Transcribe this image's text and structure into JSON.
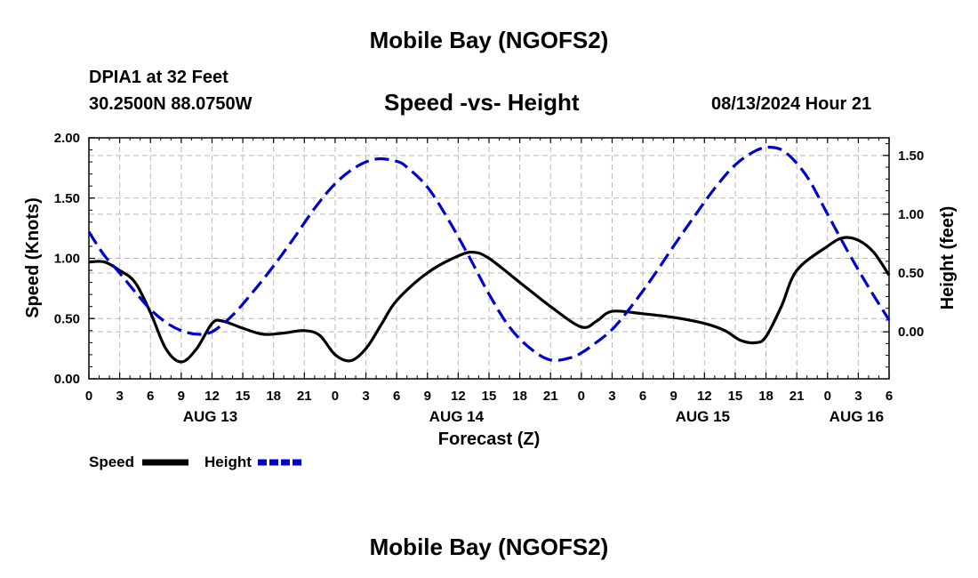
{
  "header": {
    "title": "Mobile Bay (NGOFS2)",
    "station": "DPIA1 at 32 Feet",
    "coords": "30.2500N  88.0750W",
    "subtitle": "Speed -vs- Height",
    "datetime": "08/13/2024 Hour 21"
  },
  "footer": {
    "title": "Mobile Bay (NGOFS2)"
  },
  "chart_data": {
    "type": "line",
    "xlabel": "Forecast (Z)",
    "ylabel_left": "Speed (Knots)",
    "ylabel_right": "Height (feet)",
    "x_range_hours": [
      0,
      78
    ],
    "ylim_left": [
      0,
      2.0
    ],
    "ylim_right": [
      -0.4,
      1.65
    ],
    "grid": true,
    "x_ticks": [
      {
        "h": 0,
        "label": "0"
      },
      {
        "h": 3,
        "label": "3"
      },
      {
        "h": 6,
        "label": "6"
      },
      {
        "h": 9,
        "label": "9"
      },
      {
        "h": 12,
        "label": "12"
      },
      {
        "h": 15,
        "label": "15"
      },
      {
        "h": 18,
        "label": "18"
      },
      {
        "h": 21,
        "label": "21"
      },
      {
        "h": 24,
        "label": "0"
      },
      {
        "h": 27,
        "label": "3"
      },
      {
        "h": 30,
        "label": "6"
      },
      {
        "h": 33,
        "label": "9"
      },
      {
        "h": 36,
        "label": "12"
      },
      {
        "h": 39,
        "label": "15"
      },
      {
        "h": 42,
        "label": "18"
      },
      {
        "h": 45,
        "label": "21"
      },
      {
        "h": 48,
        "label": "0"
      },
      {
        "h": 51,
        "label": "3"
      },
      {
        "h": 54,
        "label": "6"
      },
      {
        "h": 57,
        "label": "9"
      },
      {
        "h": 60,
        "label": "12"
      },
      {
        "h": 63,
        "label": "15"
      },
      {
        "h": 66,
        "label": "18"
      },
      {
        "h": 69,
        "label": "21"
      },
      {
        "h": 72,
        "label": "0"
      },
      {
        "h": 75,
        "label": "3"
      },
      {
        "h": 78,
        "label": "6"
      }
    ],
    "day_labels": [
      {
        "h": 12,
        "label": "AUG 13"
      },
      {
        "h": 36,
        "label": "AUG 14"
      },
      {
        "h": 60,
        "label": "AUG 15"
      },
      {
        "h": 75,
        "label": "AUG 16"
      }
    ],
    "y_ticks_left": [
      "0.00",
      "0.50",
      "1.00",
      "1.50",
      "2.00"
    ],
    "y_ticks_right": [
      "0.00",
      "0.50",
      "1.00",
      "1.50"
    ],
    "series": [
      {
        "name": "Speed",
        "axis": "left",
        "color": "#000000",
        "dash": "solid",
        "x": [
          0,
          1.5,
          3,
          4.5,
          6,
          7.5,
          9,
          10.5,
          12,
          13,
          15,
          17,
          19,
          21,
          22.5,
          24,
          25.5,
          27,
          28.5,
          30,
          33,
          36,
          37.5,
          39,
          42,
          45,
          48,
          49.5,
          51,
          54,
          57,
          60,
          62,
          63.5,
          65,
          66,
          67.5,
          69,
          72,
          73.5,
          75,
          76.5,
          78
        ],
        "values": [
          0.97,
          0.97,
          0.9,
          0.8,
          0.55,
          0.25,
          0.14,
          0.25,
          0.46,
          0.48,
          0.42,
          0.37,
          0.38,
          0.4,
          0.36,
          0.2,
          0.15,
          0.25,
          0.45,
          0.65,
          0.88,
          1.02,
          1.05,
          1.0,
          0.8,
          0.6,
          0.43,
          0.48,
          0.56,
          0.54,
          0.51,
          0.46,
          0.4,
          0.32,
          0.3,
          0.35,
          0.6,
          0.9,
          1.1,
          1.17,
          1.15,
          1.05,
          0.86
        ]
      },
      {
        "name": "Height",
        "axis": "right",
        "color": "#0000cc",
        "dash": "dashed",
        "x": [
          0,
          1.5,
          3,
          4.5,
          6,
          7.5,
          9,
          10.5,
          12,
          14,
          16,
          18,
          20,
          22,
          24,
          26,
          28,
          30,
          31,
          33,
          35,
          37,
          39,
          41,
          43,
          45,
          47,
          48,
          49,
          51,
          53,
          55,
          57,
          59,
          61,
          63,
          65,
          66.5,
          68,
          70,
          72,
          74,
          76,
          78
        ],
        "values": [
          0.85,
          0.65,
          0.5,
          0.34,
          0.19,
          0.08,
          0.01,
          -0.02,
          0.0,
          0.14,
          0.34,
          0.56,
          0.8,
          1.05,
          1.26,
          1.4,
          1.47,
          1.45,
          1.4,
          1.23,
          0.96,
          0.65,
          0.32,
          0.04,
          -0.14,
          -0.24,
          -0.22,
          -0.18,
          -0.12,
          0.02,
          0.23,
          0.47,
          0.73,
          0.98,
          1.22,
          1.42,
          1.54,
          1.57,
          1.52,
          1.32,
          1.0,
          0.68,
          0.38,
          0.1
        ]
      }
    ],
    "legend": {
      "position": "bottom-left"
    }
  }
}
